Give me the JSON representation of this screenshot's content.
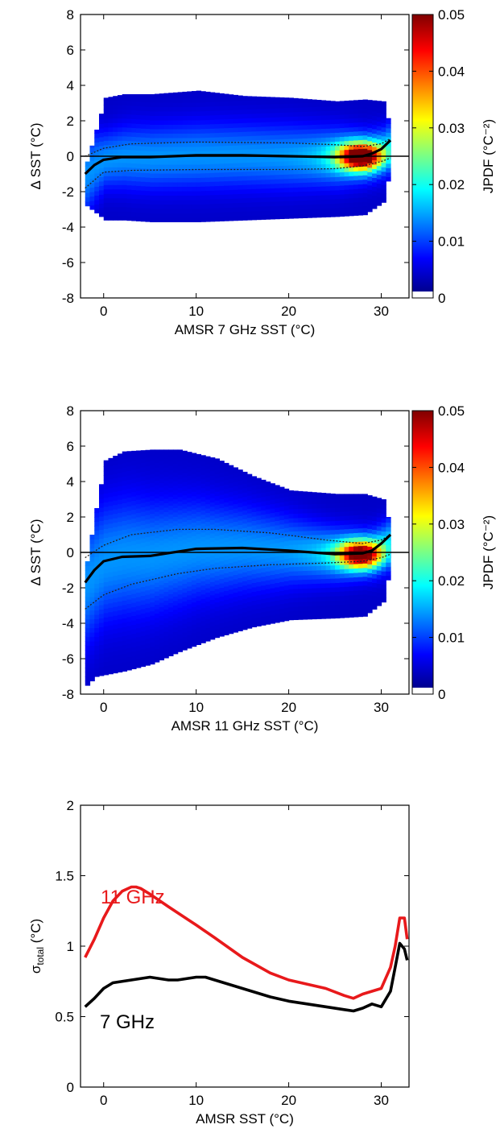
{
  "chart_data": [
    {
      "type": "heatmap",
      "xlabel": "AMSR 7 GHz SST (°C)",
      "ylabel": "Δ SST (°C)",
      "xlim": [
        -2.5,
        33
      ],
      "ylim": [
        -8,
        8
      ],
      "xticks": [
        "0",
        "10",
        "20",
        "30"
      ],
      "yticks": [
        "-8",
        "-6",
        "-4",
        "-2",
        "0",
        "2",
        "4",
        "6",
        "8"
      ],
      "colorbar": {
        "label": "JPDF (°C⁻²)",
        "range": [
          0,
          0.05
        ],
        "ticks": [
          "0",
          "0.01",
          "0.02",
          "0.03",
          "0.04",
          "0.05"
        ]
      },
      "zero_line": true,
      "mean_curve": {
        "x": [
          -2,
          -1,
          0,
          2,
          5,
          10,
          15,
          20,
          25,
          28,
          29,
          30,
          31
        ],
        "y": [
          -1.0,
          -0.5,
          -0.2,
          -0.05,
          -0.05,
          0.05,
          0.05,
          0.0,
          -0.05,
          0.0,
          0.15,
          0.4,
          0.9
        ]
      },
      "sigma_upper": {
        "x": [
          -2,
          0,
          3,
          10,
          20,
          25,
          28,
          30,
          31
        ],
        "y": [
          0.0,
          0.45,
          0.7,
          0.8,
          0.75,
          0.65,
          0.55,
          0.7,
          1.0
        ]
      },
      "sigma_lower": {
        "x": [
          -2,
          0,
          3,
          10,
          20,
          25,
          28,
          30,
          31
        ],
        "y": [
          -1.8,
          -0.9,
          -0.8,
          -0.75,
          -0.75,
          -0.7,
          -0.55,
          -0.3,
          -0.1
        ]
      },
      "density_extent": {
        "x": [
          -2,
          -1,
          0,
          2,
          5,
          10,
          15,
          20,
          25,
          28,
          30,
          31
        ],
        "ymax": [
          -0.3,
          1.5,
          3.3,
          3.5,
          3.5,
          3.7,
          3.4,
          3.3,
          3.1,
          3.2,
          3.1,
          1.2
        ],
        "ymin": [
          -2.8,
          -3.2,
          -3.6,
          -3.6,
          -3.7,
          -3.7,
          -3.6,
          -3.5,
          -3.4,
          -3.3,
          -2.6,
          -0.2
        ]
      },
      "hotspot": {
        "x": 27.5,
        "y": 0.0,
        "jpdf": 0.045
      }
    },
    {
      "type": "heatmap",
      "xlabel": "AMSR 11 GHz SST (°C)",
      "ylabel": "Δ SST (°C)",
      "xlim": [
        -2.5,
        33
      ],
      "ylim": [
        -8,
        8
      ],
      "xticks": [
        "0",
        "10",
        "20",
        "30"
      ],
      "yticks": [
        "-8",
        "-6",
        "-4",
        "-2",
        "0",
        "2",
        "4",
        "6",
        "8"
      ],
      "colorbar": {
        "label": "JPDF (°C⁻²)",
        "range": [
          0,
          0.05
        ],
        "ticks": [
          "0",
          "0.01",
          "0.02",
          "0.03",
          "0.04",
          "0.05"
        ]
      },
      "zero_line": true,
      "mean_curve": {
        "x": [
          -2,
          -1,
          0,
          2,
          5,
          10,
          15,
          20,
          25,
          28,
          29,
          30,
          31
        ],
        "y": [
          -1.7,
          -1.0,
          -0.5,
          -0.25,
          -0.2,
          0.2,
          0.25,
          0.1,
          -0.1,
          -0.05,
          0.1,
          0.5,
          1.0
        ]
      },
      "sigma_upper": {
        "x": [
          -2,
          0,
          3,
          8,
          12,
          18,
          24,
          28,
          30,
          31
        ],
        "y": [
          -0.3,
          0.4,
          1.0,
          1.3,
          1.3,
          1.1,
          0.7,
          0.5,
          0.7,
          1.0
        ]
      },
      "sigma_lower": {
        "x": [
          -2,
          0,
          3,
          8,
          12,
          18,
          24,
          28,
          30,
          31
        ],
        "y": [
          -3.2,
          -2.4,
          -1.8,
          -1.2,
          -0.9,
          -0.7,
          -0.6,
          -0.5,
          -0.3,
          -0.1
        ]
      },
      "density_extent": {
        "x": [
          -2,
          -1,
          0,
          2,
          5,
          8,
          12,
          16,
          20,
          25,
          28,
          30,
          31
        ],
        "ymax": [
          -0.5,
          2.5,
          5.2,
          5.7,
          5.8,
          5.8,
          5.3,
          4.3,
          3.5,
          3.3,
          3.3,
          3.0,
          1.0
        ],
        "ymin": [
          -7.5,
          -7.0,
          -6.9,
          -6.7,
          -6.3,
          -5.6,
          -4.8,
          -4.2,
          -3.8,
          -3.7,
          -3.6,
          -2.8,
          -0.3
        ]
      },
      "hotspot": {
        "x": 27.5,
        "y": -0.1,
        "jpdf": 0.04
      }
    },
    {
      "type": "line",
      "xlabel": "AMSR SST (°C)",
      "ylabel": "σ",
      "ylabel_sub": "total",
      "ylabel_unit": " (°C)",
      "xlim": [
        -2.5,
        33
      ],
      "ylim": [
        0,
        2
      ],
      "xticks": [
        "0",
        "10",
        "20",
        "30"
      ],
      "yticks": [
        "0",
        "0.5",
        "1",
        "1.5",
        "2"
      ],
      "series": [
        {
          "name": "11 GHz",
          "color": "#e8191b",
          "x": [
            -2,
            -1,
            0,
            1,
            2,
            3,
            3.5,
            4,
            5,
            7,
            10,
            12,
            15,
            18,
            20,
            22,
            24,
            26,
            27,
            28,
            29,
            30,
            31,
            31.5,
            32,
            32.5,
            32.8
          ],
          "y": [
            0.92,
            1.05,
            1.2,
            1.32,
            1.39,
            1.42,
            1.42,
            1.41,
            1.37,
            1.28,
            1.15,
            1.06,
            0.92,
            0.81,
            0.76,
            0.73,
            0.7,
            0.65,
            0.63,
            0.66,
            0.68,
            0.7,
            0.85,
            1.0,
            1.2,
            1.2,
            1.05
          ]
        },
        {
          "name": "7 GHz",
          "color": "#000000",
          "x": [
            -2,
            -1,
            0,
            1,
            3,
            5,
            7,
            8,
            10,
            11,
            12,
            15,
            18,
            20,
            22,
            24,
            26,
            27,
            28,
            29,
            30,
            31,
            31.5,
            32,
            32.5,
            32.8
          ],
          "y": [
            0.57,
            0.63,
            0.7,
            0.74,
            0.76,
            0.78,
            0.76,
            0.76,
            0.78,
            0.78,
            0.76,
            0.7,
            0.64,
            0.61,
            0.59,
            0.57,
            0.55,
            0.54,
            0.56,
            0.59,
            0.57,
            0.68,
            0.85,
            1.02,
            0.98,
            0.9
          ]
        }
      ]
    }
  ]
}
